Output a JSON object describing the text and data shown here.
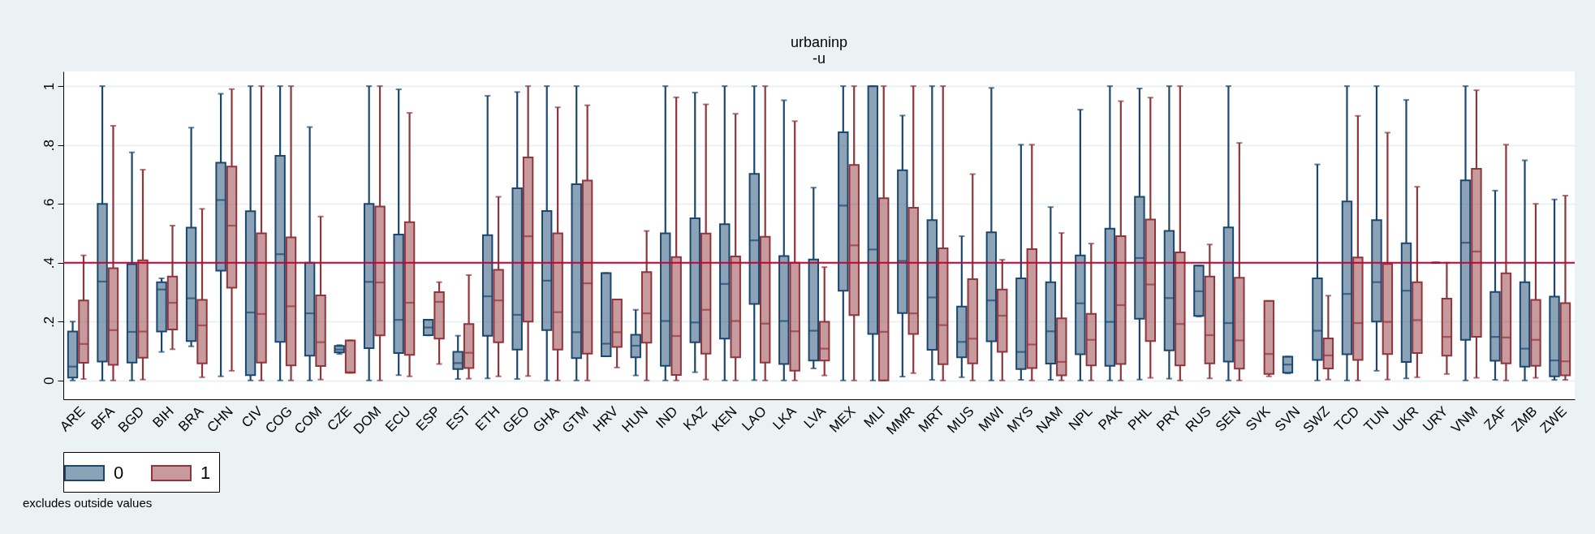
{
  "chart_data": {
    "type": "box",
    "title": "urbaninp",
    "subtitle": "-u",
    "annotations": [
      "excludes outside values"
    ],
    "categories": [
      "ARE",
      "BFA",
      "BGD",
      "BIH",
      "BRA",
      "CHN",
      "CIV",
      "COG",
      "COM",
      "CZE",
      "DOM",
      "ECU",
      "ESP",
      "EST",
      "ETH",
      "GEO",
      "GHA",
      "GTM",
      "HRV",
      "HUN",
      "IND",
      "KAZ",
      "KEN",
      "LAO",
      "LKA",
      "LVA",
      "MEX",
      "MLI",
      "MMR",
      "MRT",
      "MUS",
      "MWI",
      "MYS",
      "NAM",
      "NPL",
      "PAK",
      "PHL",
      "PRY",
      "RUS",
      "SEN",
      "SVK",
      "SVN",
      "SWZ",
      "TCD",
      "TUN",
      "UKR",
      "URY",
      "VNM",
      "ZAF",
      "ZMB",
      "ZWE"
    ],
    "ylim": [
      -0.064,
      1.05
    ],
    "yticks": [
      0,
      {
        "value": 0.2,
        "label": ".2"
      },
      {
        "value": 0.4,
        "label": ".4"
      },
      {
        "value": 0.6,
        "label": ".6"
      },
      {
        "value": 0.8,
        "label": ".8"
      },
      1
    ],
    "grid": "y",
    "legend": "bottom",
    "ref_lines": [
      {
        "axis": "y",
        "value": 0.4,
        "color": "#c10534"
      }
    ],
    "series": [
      {
        "name": "0",
        "color": "#1a476f",
        "boxes": [
          {
            "low": 0,
            "q1": 0.01,
            "median": 0.047,
            "q3": 0.166,
            "high": 0.2
          },
          {
            "low": 0,
            "q1": 0.064,
            "median": 0.336,
            "q3": 0.6,
            "high": 1
          },
          {
            "low": 0,
            "q1": 0.061,
            "median": 0.165,
            "q3": 0.395,
            "high": 0.775
          },
          {
            "low": 0.097,
            "q1": 0.166,
            "median": 0.309,
            "q3": 0.334,
            "high": 0.347
          },
          {
            "low": 0.116,
            "q1": 0.134,
            "median": 0.279,
            "q3": 0.519,
            "high": 0.859
          },
          {
            "low": 0.014,
            "q1": 0.373,
            "median": 0.613,
            "q3": 0.74,
            "high": 0.974
          },
          {
            "low": 0,
            "q1": 0.018,
            "median": 0.231,
            "q3": 0.575,
            "high": 1
          },
          {
            "low": 0,
            "q1": 0.131,
            "median": 0.429,
            "q3": 0.763,
            "high": 1
          },
          {
            "low": 0,
            "q1": 0.084,
            "median": 0.228,
            "q3": 0.4,
            "high": 0.861
          },
          {
            "low": 0.09,
            "q1": 0.095,
            "median": 0.105,
            "q3": 0.117,
            "high": 0.12
          },
          {
            "low": 0,
            "q1": 0.11,
            "median": 0.335,
            "q3": 0.6,
            "high": 1
          },
          {
            "low": 0.018,
            "q1": 0.093,
            "median": 0.206,
            "q3": 0.496,
            "high": 0.989
          },
          {
            "low": 0.153,
            "q1": 0.154,
            "median": 0.18,
            "q3": 0.206,
            "high": 0.206
          },
          {
            "low": 0.005,
            "q1": 0.039,
            "median": 0.059,
            "q3": 0.097,
            "high": 0.152
          },
          {
            "low": 0.007,
            "q1": 0.152,
            "median": 0.286,
            "q3": 0.494,
            "high": 0.967
          },
          {
            "low": 0.005,
            "q1": 0.105,
            "median": 0.223,
            "q3": 0.653,
            "high": 0.98
          },
          {
            "low": 0,
            "q1": 0.171,
            "median": 0.339,
            "q3": 0.576,
            "high": 1
          },
          {
            "low": 0,
            "q1": 0.076,
            "median": 0.164,
            "q3": 0.667,
            "high": 1
          },
          {
            "low": 0.082,
            "q1": 0.082,
            "median": 0.125,
            "q3": 0.365,
            "high": 0.365
          },
          {
            "low": 0.017,
            "q1": 0.079,
            "median": 0.118,
            "q3": 0.155,
            "high": 0.24
          },
          {
            "low": 0,
            "q1": 0.05,
            "median": 0.202,
            "q3": 0.5,
            "high": 1
          },
          {
            "low": 0.028,
            "q1": 0.13,
            "median": 0.197,
            "q3": 0.551,
            "high": 0.978
          },
          {
            "low": 0,
            "q1": 0.142,
            "median": 0.328,
            "q3": 0.531,
            "high": 1
          },
          {
            "low": 0.001,
            "q1": 0.26,
            "median": 0.476,
            "q3": 0.702,
            "high": 1
          },
          {
            "low": 0,
            "q1": 0.056,
            "median": 0.202,
            "q3": 0.423,
            "high": 0.952
          },
          {
            "low": 0.041,
            "q1": 0.068,
            "median": 0.169,
            "q3": 0.411,
            "high": 0.655
          },
          {
            "low": 0,
            "q1": 0.305,
            "median": 0.594,
            "q3": 0.843,
            "high": 1
          },
          {
            "low": 0,
            "q1": 0.158,
            "median": 0.445,
            "q3": 1,
            "high": 1
          },
          {
            "low": 0.013,
            "q1": 0.229,
            "median": 0.406,
            "q3": 0.714,
            "high": 0.9
          },
          {
            "low": 0.002,
            "q1": 0.104,
            "median": 0.282,
            "q3": 0.545,
            "high": 1
          },
          {
            "low": 0.011,
            "q1": 0.079,
            "median": 0.131,
            "q3": 0.251,
            "high": 0.49
          },
          {
            "low": 0,
            "q1": 0.133,
            "median": 0.272,
            "q3": 0.503,
            "high": 0.994
          },
          {
            "low": 0.002,
            "q1": 0.039,
            "median": 0.097,
            "q3": 0.347,
            "high": 0.801
          },
          {
            "low": 0.002,
            "q1": 0.057,
            "median": 0.167,
            "q3": 0.334,
            "high": 0.589
          },
          {
            "low": 0,
            "q1": 0.089,
            "median": 0.262,
            "q3": 0.425,
            "high": 0.92
          },
          {
            "low": 0,
            "q1": 0.05,
            "median": 0.199,
            "q3": 0.516,
            "high": 1
          },
          {
            "low": 0.003,
            "q1": 0.21,
            "median": 0.416,
            "q3": 0.624,
            "high": 0.992
          },
          {
            "low": 0.006,
            "q1": 0.102,
            "median": 0.28,
            "q3": 0.508,
            "high": 1
          },
          {
            "low": 0.217,
            "q1": 0.219,
            "median": 0.303,
            "q3": 0.39,
            "high": 0.39
          },
          {
            "low": 0,
            "q1": 0.064,
            "median": 0.195,
            "q3": 0.52,
            "high": 1
          },
          null,
          {
            "low": 0.024,
            "q1": 0.026,
            "median": 0.054,
            "q3": 0.081,
            "high": 0.081
          },
          {
            "low": 0,
            "q1": 0.07,
            "median": 0.169,
            "q3": 0.347,
            "high": 0.734
          },
          {
            "low": 0,
            "q1": 0.089,
            "median": 0.294,
            "q3": 0.608,
            "high": 1
          },
          {
            "low": 0.033,
            "q1": 0.2,
            "median": 0.334,
            "q3": 0.545,
            "high": 1
          },
          {
            "low": 0.007,
            "q1": 0.063,
            "median": 0.305,
            "q3": 0.466,
            "high": 0.953
          },
          {
            "low": 0.4,
            "q1": 0.4,
            "median": 0.4,
            "q3": 0.4,
            "high": 0.4
          },
          {
            "low": 0,
            "q1": 0.138,
            "median": 0.468,
            "q3": 0.68,
            "high": 1
          },
          {
            "low": 0.002,
            "q1": 0.067,
            "median": 0.148,
            "q3": 0.301,
            "high": 0.645
          },
          {
            "low": 0,
            "q1": 0.047,
            "median": 0.108,
            "q3": 0.334,
            "high": 0.748
          },
          {
            "low": 0.002,
            "q1": 0.014,
            "median": 0.068,
            "q3": 0.285,
            "high": 0.615
          }
        ]
      },
      {
        "name": "1",
        "color": "#90353b",
        "boxes": [
          {
            "low": 0.005,
            "q1": 0.06,
            "median": 0.124,
            "q3": 0.272,
            "high": 0.425
          },
          {
            "low": 0,
            "q1": 0.053,
            "median": 0.171,
            "q3": 0.381,
            "high": 0.865
          },
          {
            "low": 0.003,
            "q1": 0.077,
            "median": 0.166,
            "q3": 0.408,
            "high": 0.716
          },
          {
            "low": 0.106,
            "q1": 0.173,
            "median": 0.264,
            "q3": 0.353,
            "high": 0.526
          },
          {
            "low": 0.011,
            "q1": 0.058,
            "median": 0.187,
            "q3": 0.274,
            "high": 0.583
          },
          {
            "low": 0.033,
            "q1": 0.315,
            "median": 0.526,
            "q3": 0.727,
            "high": 0.99
          },
          {
            "low": 0,
            "q1": 0.061,
            "median": 0.226,
            "q3": 0.5,
            "high": 1
          },
          {
            "low": 0,
            "q1": 0.051,
            "median": 0.252,
            "q3": 0.486,
            "high": 1
          },
          {
            "low": 0.003,
            "q1": 0.049,
            "median": 0.13,
            "q3": 0.289,
            "high": 0.557
          },
          {
            "low": 0.026,
            "q1": 0.026,
            "median": 0.028,
            "q3": 0.136,
            "high": 0.136
          },
          {
            "low": 0,
            "q1": 0.153,
            "median": 0.333,
            "q3": 0.591,
            "high": 1
          },
          {
            "low": 0.014,
            "q1": 0.087,
            "median": 0.264,
            "q3": 0.538,
            "high": 0.909
          },
          {
            "low": 0.056,
            "q1": 0.142,
            "median": 0.267,
            "q3": 0.3,
            "high": 0.334
          },
          {
            "low": 0.006,
            "q1": 0.042,
            "median": 0.094,
            "q3": 0.192,
            "high": 0.358
          },
          {
            "low": 0.014,
            "q1": 0.13,
            "median": 0.272,
            "q3": 0.376,
            "high": 0.624
          },
          {
            "low": 0.015,
            "q1": 0.2,
            "median": 0.49,
            "q3": 0.758,
            "high": 1
          },
          {
            "low": 0,
            "q1": 0.105,
            "median": 0.232,
            "q3": 0.5,
            "high": 0.928
          },
          {
            "low": 0,
            "q1": 0.091,
            "median": 0.33,
            "q3": 0.679,
            "high": 0.935
          },
          {
            "low": 0.044,
            "q1": 0.114,
            "median": 0.164,
            "q3": 0.275,
            "high": 0.275
          },
          {
            "low": 0,
            "q1": 0.128,
            "median": 0.228,
            "q3": 0.368,
            "high": 0.508
          },
          {
            "low": 0,
            "q1": 0.019,
            "median": 0.151,
            "q3": 0.419,
            "high": 0.962
          },
          {
            "low": 0.003,
            "q1": 0.091,
            "median": 0.24,
            "q3": 0.499,
            "high": 0.938
          },
          {
            "low": 0,
            "q1": 0.079,
            "median": 0.202,
            "q3": 0.421,
            "high": 0.906
          },
          {
            "low": 0,
            "q1": 0.061,
            "median": 0.193,
            "q3": 0.488,
            "high": 1
          },
          {
            "low": 0,
            "q1": 0.033,
            "median": 0.167,
            "q3": 0.4,
            "high": 0.881
          },
          {
            "low": 0.017,
            "q1": 0.068,
            "median": 0.108,
            "q3": 0.199,
            "high": 0.385
          },
          {
            "low": 0,
            "q1": 0.222,
            "median": 0.459,
            "q3": 0.732,
            "high": 1
          },
          {
            "low": 0,
            "q1": 0,
            "median": 0.165,
            "q3": 0.619,
            "high": 1
          },
          {
            "low": 0.025,
            "q1": 0.158,
            "median": 0.228,
            "q3": 0.587,
            "high": 1
          },
          {
            "low": 0,
            "q1": 0.055,
            "median": 0.188,
            "q3": 0.449,
            "high": 1
          },
          {
            "low": 0,
            "q1": 0.058,
            "median": 0.142,
            "q3": 0.344,
            "high": 0.701
          },
          {
            "low": 0,
            "q1": 0.097,
            "median": 0.22,
            "q3": 0.309,
            "high": 0.41
          },
          {
            "low": 0,
            "q1": 0.042,
            "median": 0.122,
            "q3": 0.446,
            "high": 0.801
          },
          {
            "low": 0,
            "q1": 0.017,
            "median": 0.063,
            "q3": 0.211,
            "high": 0.501
          },
          {
            "low": 0,
            "q1": 0.051,
            "median": 0.138,
            "q3": 0.226,
            "high": 0.465
          },
          {
            "low": 0,
            "q1": 0.056,
            "median": 0.256,
            "q3": 0.49,
            "high": 0.949
          },
          {
            "low": 0.009,
            "q1": 0.134,
            "median": 0.326,
            "q3": 0.547,
            "high": 0.961
          },
          {
            "low": 0,
            "q1": 0.051,
            "median": 0.192,
            "q3": 0.435,
            "high": 1
          },
          {
            "low": 0.007,
            "q1": 0.058,
            "median": 0.154,
            "q3": 0.353,
            "high": 0.462
          },
          {
            "low": 0,
            "q1": 0.04,
            "median": 0.136,
            "q3": 0.349,
            "high": 0.807
          },
          {
            "low": 0.014,
            "q1": 0.022,
            "median": 0.09,
            "q3": 0.27,
            "high": 0.27
          },
          null,
          {
            "low": 0.003,
            "q1": 0.041,
            "median": 0.085,
            "q3": 0.143,
            "high": 0.288
          },
          {
            "low": 0,
            "q1": 0.07,
            "median": 0.195,
            "q3": 0.418,
            "high": 0.899
          },
          {
            "low": 0.003,
            "q1": 0.09,
            "median": 0.199,
            "q3": 0.396,
            "high": 0.842
          },
          {
            "low": 0.011,
            "q1": 0.093,
            "median": 0.205,
            "q3": 0.334,
            "high": 0.658
          },
          {
            "low": 0.022,
            "q1": 0.084,
            "median": 0.148,
            "q3": 0.278,
            "high": 0.4
          },
          {
            "low": 0.009,
            "q1": 0.148,
            "median": 0.438,
            "q3": 0.719,
            "high": 0.986
          },
          {
            "low": 0,
            "q1": 0.058,
            "median": 0.146,
            "q3": 0.364,
            "high": 0.801
          },
          {
            "low": 0.009,
            "q1": 0.05,
            "median": 0.138,
            "q3": 0.274,
            "high": 0.6
          },
          {
            "low": 0.002,
            "q1": 0.017,
            "median": 0.065,
            "q3": 0.263,
            "high": 0.628
          }
        ]
      }
    ]
  }
}
